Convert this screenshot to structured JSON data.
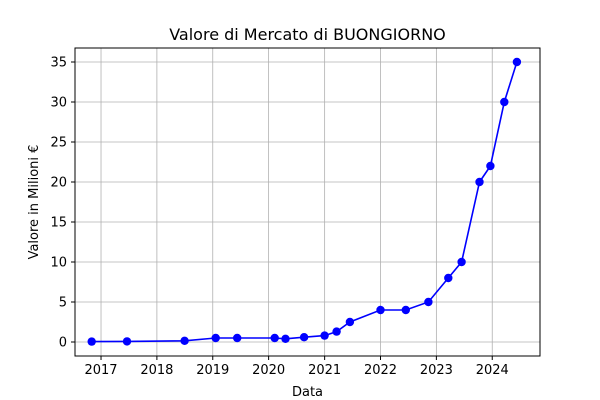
{
  "chart_data": {
    "type": "line",
    "title": "Valore di Mercato di BUONGIORNO",
    "xlabel": "Data",
    "ylabel": "Valore in Milioni €",
    "x_tick_labels": [
      "2017",
      "2018",
      "2019",
      "2020",
      "2021",
      "2022",
      "2023",
      "2024"
    ],
    "y_tick_labels": [
      "0",
      "5",
      "10",
      "15",
      "20",
      "25",
      "30",
      "35"
    ],
    "grid": true,
    "series": [
      {
        "color": "#0000ff",
        "marker": "circle",
        "points": [
          {
            "x": "2016-11-01",
            "y": 0.05
          },
          {
            "x": "2017-06-20",
            "y": 0.07
          },
          {
            "x": "2018-07-01",
            "y": 0.15
          },
          {
            "x": "2019-01-20",
            "y": 0.5
          },
          {
            "x": "2019-06-10",
            "y": 0.5
          },
          {
            "x": "2020-02-10",
            "y": 0.5
          },
          {
            "x": "2020-04-20",
            "y": 0.4
          },
          {
            "x": "2020-08-20",
            "y": 0.6
          },
          {
            "x": "2021-01-01",
            "y": 0.8
          },
          {
            "x": "2021-03-20",
            "y": 1.3
          },
          {
            "x": "2021-06-15",
            "y": 2.5
          },
          {
            "x": "2022-01-01",
            "y": 4
          },
          {
            "x": "2022-06-15",
            "y": 4
          },
          {
            "x": "2022-11-10",
            "y": 5
          },
          {
            "x": "2023-03-20",
            "y": 8
          },
          {
            "x": "2023-06-15",
            "y": 10
          },
          {
            "x": "2023-10-10",
            "y": 20
          },
          {
            "x": "2023-12-20",
            "y": 22
          },
          {
            "x": "2024-03-20",
            "y": 30
          },
          {
            "x": "2024-06-10",
            "y": 35
          }
        ]
      }
    ]
  }
}
